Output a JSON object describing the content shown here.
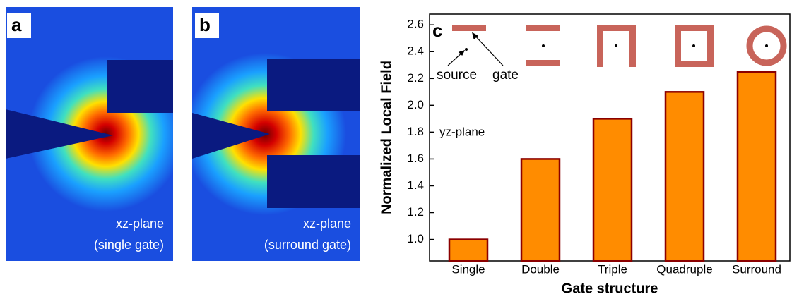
{
  "panels": [
    {
      "label": "a",
      "caption": [
        "xz-plane",
        "(single gate)"
      ]
    },
    {
      "label": "b",
      "caption": [
        "xz-plane",
        "(surround gate)"
      ]
    }
  ],
  "chart_data": {
    "type": "bar",
    "panel_label": "c",
    "categories": [
      "Single",
      "Double",
      "Triple",
      "Quadruple",
      "Surround"
    ],
    "values": [
      1.0,
      1.6,
      1.9,
      2.1,
      2.25
    ],
    "color": "#ff8c00",
    "edge_color": "#8b0000",
    "x_label": "Gate structure",
    "y_label": "Normalized Local Field",
    "ylim": [
      0.84,
      2.68
    ],
    "yticks": [
      {
        "value": 1.0,
        "label": "1.0"
      },
      {
        "value": 1.2,
        "label": "1.2"
      },
      {
        "value": 1.4,
        "label": "1.4"
      },
      {
        "value": 1.6,
        "label": "1.6"
      },
      {
        "value": 1.8,
        "label": "1.8"
      },
      {
        "value": 2.0,
        "label": "2.0"
      },
      {
        "value": 2.2,
        "label": "2.2"
      },
      {
        "value": 2.4,
        "label": "2.4"
      },
      {
        "value": 2.6,
        "label": "2.6"
      }
    ],
    "annotations": [
      "source",
      "gate",
      "yz-plane"
    ]
  }
}
